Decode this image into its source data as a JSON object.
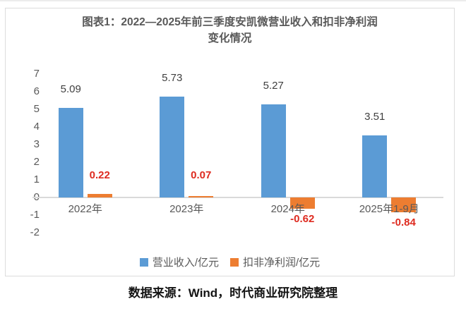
{
  "header": {
    "title_line1": "图表1：2022—2025年前三季度安凯微营业收入和扣非净利润",
    "title_line2": "变化情况"
  },
  "footer": {
    "source": "数据来源：Wind，时代商业研究院整理"
  },
  "colors": {
    "axis_line": "#d9d9d9",
    "tick_text": "#595959",
    "revenue_bar": "#5b9bd5",
    "profit_bar": "#ed7d31",
    "revenue_label": "#3f3f3f",
    "profit_label": "#de2b20"
  },
  "chart_data": {
    "type": "bar",
    "title": "图表1：2022—2025年前三季度安凯微营业收入和扣非净利润变化情况",
    "categories": [
      "2022年",
      "2023年",
      "2024年",
      "2025年1-9月"
    ],
    "series": [
      {
        "name": "营业收入/亿元",
        "color": "#5b9bd5",
        "values": [
          5.09,
          5.73,
          5.27,
          3.51
        ],
        "labels": [
          "5.09",
          "5.73",
          "5.27",
          "3.51"
        ],
        "label_color": "#3f3f3f",
        "label_bold": false
      },
      {
        "name": "扣非净利润/亿元",
        "color": "#ed7d31",
        "values": [
          0.22,
          0.07,
          -0.62,
          -0.84
        ],
        "labels": [
          "0.22",
          "0.07",
          "-0.62",
          "-0.84"
        ],
        "label_color": "#de2b20",
        "label_bold": true
      }
    ],
    "xlabel": "",
    "ylabel": "",
    "ylim": [
      -2,
      7
    ],
    "yticks": [
      7,
      6,
      5,
      4,
      3,
      2,
      1,
      0,
      -1,
      -2
    ],
    "grid": false,
    "legend_position": "bottom",
    "source_note": "数据来源：Wind，时代商业研究院整理"
  }
}
